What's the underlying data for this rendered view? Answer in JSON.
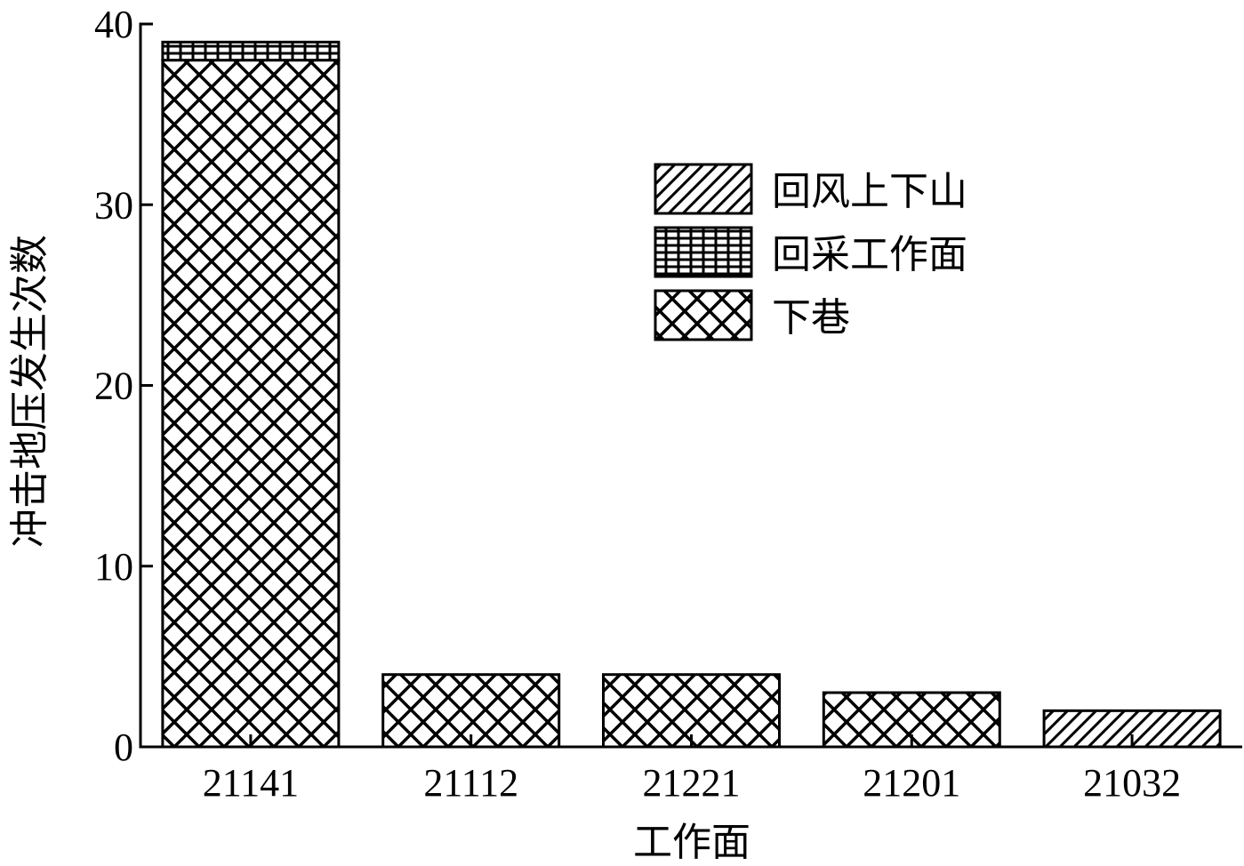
{
  "chart_data": {
    "type": "bar",
    "stacked": true,
    "xlabel": "工作面",
    "ylabel": "冲击地压发生次数",
    "categories": [
      "21141",
      "21112",
      "21221",
      "21201",
      "21032"
    ],
    "ylim": [
      0,
      40
    ],
    "yticks": [
      0,
      10,
      20,
      30,
      40
    ],
    "legend_position": "top-right",
    "grid": false,
    "series": [
      {
        "name": "下巷",
        "pattern": "crosshatch",
        "values": [
          38,
          4,
          4,
          3,
          0
        ]
      },
      {
        "name": "回采工作面",
        "pattern": "grid",
        "values": [
          1,
          0,
          0,
          0,
          0
        ]
      },
      {
        "name": "回风上下山",
        "pattern": "diagonal",
        "values": [
          0,
          0,
          0,
          0,
          2
        ]
      }
    ],
    "legend_order": [
      2,
      1,
      0
    ]
  }
}
